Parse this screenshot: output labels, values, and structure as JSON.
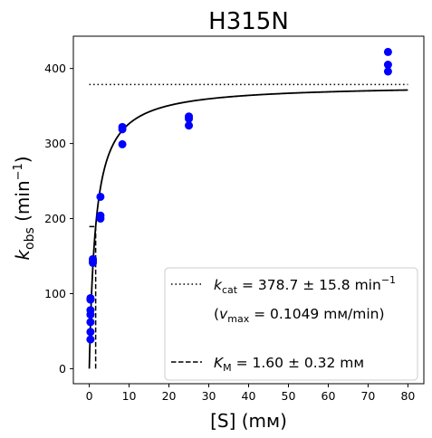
{
  "chart_data": {
    "type": "scatter",
    "title": "H315N",
    "xlabel": "[S] (mм)",
    "ylabel": {
      "main": "k",
      "sub": "obs",
      "unit_pre": " (min",
      "unit_sup": "−1",
      "unit_post": ")"
    },
    "xlim": [
      -4,
      84
    ],
    "ylim": [
      -20,
      443
    ],
    "xticks": [
      0,
      10,
      20,
      30,
      40,
      50,
      60,
      70,
      80
    ],
    "yticks": [
      0,
      100,
      200,
      300,
      400
    ],
    "grid": false,
    "legend_position": "lower right",
    "point_color": "#0000ff",
    "points": [
      {
        "x": 0.3,
        "y": 39
      },
      {
        "x": 0.3,
        "y": 49
      },
      {
        "x": 0.3,
        "y": 62
      },
      {
        "x": 0.3,
        "y": 72
      },
      {
        "x": 0.3,
        "y": 78
      },
      {
        "x": 0.3,
        "y": 92
      },
      {
        "x": 0.3,
        "y": 94
      },
      {
        "x": 0.9,
        "y": 141
      },
      {
        "x": 0.9,
        "y": 143
      },
      {
        "x": 0.9,
        "y": 146
      },
      {
        "x": 2.8,
        "y": 200
      },
      {
        "x": 2.8,
        "y": 204
      },
      {
        "x": 2.8,
        "y": 229
      },
      {
        "x": 8.3,
        "y": 299
      },
      {
        "x": 8.3,
        "y": 319
      },
      {
        "x": 8.3,
        "y": 322
      },
      {
        "x": 25,
        "y": 324
      },
      {
        "x": 25,
        "y": 333
      },
      {
        "x": 25,
        "y": 336
      },
      {
        "x": 75,
        "y": 396
      },
      {
        "x": 75,
        "y": 405
      },
      {
        "x": 75,
        "y": 422
      }
    ],
    "fit_curve": {
      "kcat": 378.7,
      "KM": 1.6,
      "x_range": [
        0,
        80
      ]
    },
    "kcat_line": {
      "y": 378.7,
      "x_range": [
        0,
        80
      ]
    },
    "km_line": {
      "x": 1.6,
      "y_range": [
        0,
        189.35
      ]
    },
    "km_hline": {
      "y": 189.35,
      "x_range": [
        0,
        1.6
      ]
    },
    "legend": {
      "kcat_text": {
        "sym": "k",
        "sub": "cat",
        "value": " = 378.7 ± 15.8 min",
        "sup": "−1"
      },
      "vmax_text": {
        "open": "(",
        "sym": "v",
        "sub": "max",
        "value": " = 0.1049 mм/min)"
      },
      "km_text": {
        "sym": "K",
        "sub": "M",
        "value": " = 1.60 ± 0.32 mм"
      }
    }
  }
}
